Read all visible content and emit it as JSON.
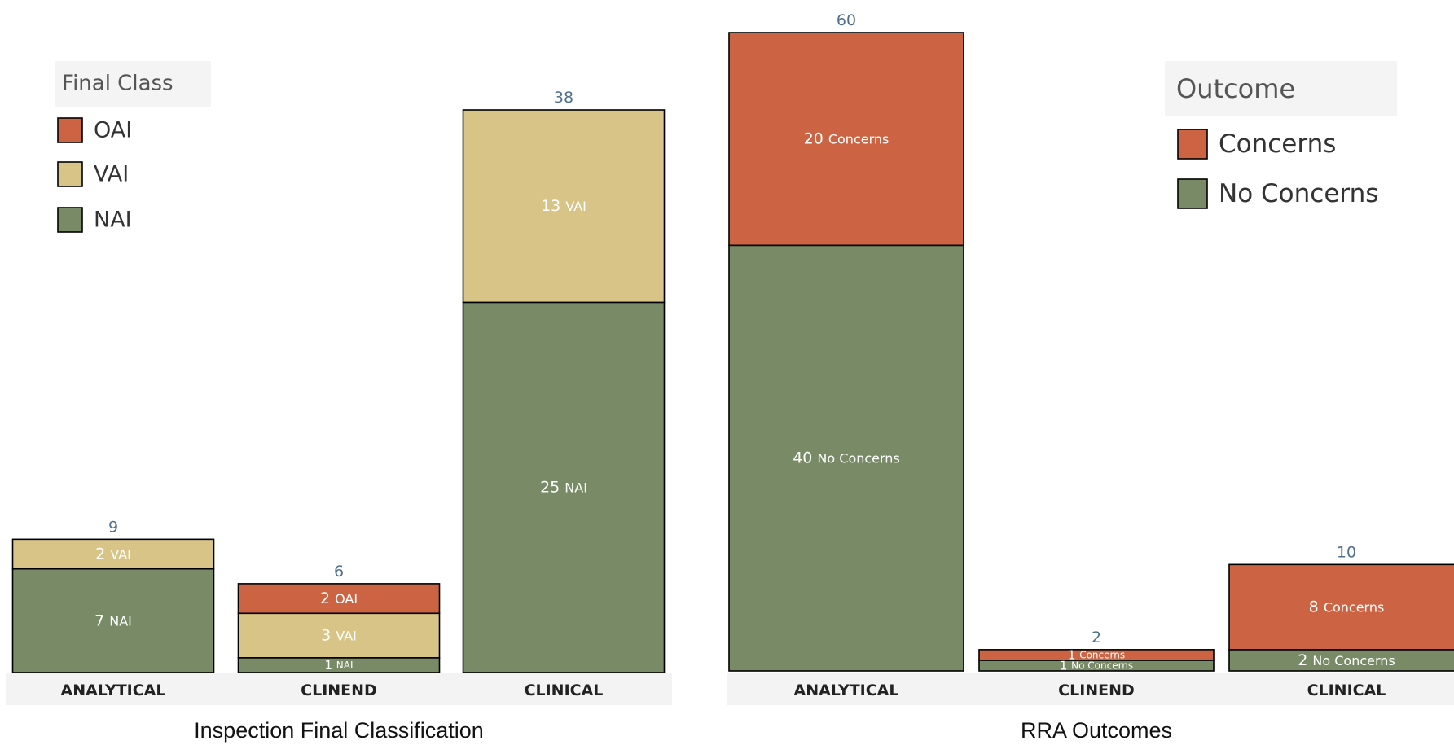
{
  "chart_data": [
    {
      "type": "bar",
      "stacked": true,
      "caption": "Inspection Final Classification",
      "categories": [
        "ANALYTICAL",
        "CLINEND",
        "CLINICAL"
      ],
      "series": [
        {
          "name": "NAI",
          "values": [
            7,
            1,
            25
          ],
          "color": "#788a66"
        },
        {
          "name": "VAI",
          "values": [
            2,
            3,
            13
          ],
          "color": "#d8c486"
        },
        {
          "name": "OAI",
          "values": [
            0,
            2,
            0
          ],
          "color": "#cc6444"
        }
      ],
      "totals": [
        9,
        6,
        38
      ],
      "legend": {
        "title": "Final Class",
        "entries": [
          "OAI",
          "VAI",
          "NAI"
        ],
        "placement": "top-left"
      }
    },
    {
      "type": "bar",
      "stacked": true,
      "caption": "RRA Outcomes",
      "categories": [
        "ANALYTICAL",
        "CLINEND",
        "CLINICAL"
      ],
      "series": [
        {
          "name": "No Concerns",
          "values": [
            40,
            1,
            2
          ],
          "color": "#788a66"
        },
        {
          "name": "Concerns",
          "values": [
            20,
            1,
            8
          ],
          "color": "#cc6444"
        }
      ],
      "totals": [
        60,
        2,
        10
      ],
      "legend": {
        "title": "Outcome",
        "entries": [
          "Concerns",
          "No Concerns"
        ],
        "placement": "top-right"
      }
    }
  ]
}
